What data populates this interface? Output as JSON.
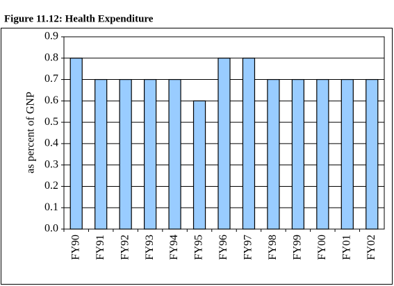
{
  "chart_data": {
    "type": "bar",
    "title": "Figure 11.12: Health Expenditure",
    "y_label": "as percent of GNP",
    "categories": [
      "FY90",
      "FY91",
      "FY92",
      "FY93",
      "FY94",
      "FY95",
      "FY96",
      "FY97",
      "FY98",
      "FY99",
      "FY00",
      "FY01",
      "FY02"
    ],
    "values": [
      0.8,
      0.7,
      0.7,
      0.7,
      0.7,
      0.6,
      0.8,
      0.8,
      0.7,
      0.7,
      0.7,
      0.7,
      0.7
    ],
    "color": "#99ccff",
    "ylim": [
      0,
      0.9
    ],
    "yticks": [
      {
        "value": 0,
        "label": "0.0"
      },
      0.1,
      0.2,
      0.3,
      0.4,
      0.5,
      0.6,
      0.7,
      0.8,
      0.9
    ],
    "grid": true
  }
}
